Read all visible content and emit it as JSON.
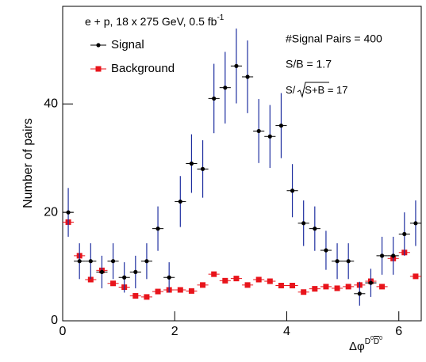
{
  "chart_data": {
    "type": "errorbar",
    "annotation_title": {
      "text": "e + p, 18 x 275 GeV, 0.5 fb",
      "sup": "-1"
    },
    "annotations": [
      "#Signal Pairs = 400",
      "S/B = 1.7"
    ],
    "ratio_annotation": {
      "prefix": "S/",
      "radicand": "S+B",
      "suffix": " = 17"
    },
    "ylabel": "Number of pairs",
    "xlabel": {
      "base": "Δφ",
      "sup1": "D",
      "sup1_exp": "0",
      "sup2": "D",
      "sup2_exp": "0"
    },
    "x": [
      0.1,
      0.3,
      0.5,
      0.7,
      0.9,
      1.1,
      1.3,
      1.5,
      1.7,
      1.9,
      2.1,
      2.3,
      2.5,
      2.7,
      2.9,
      3.1,
      3.3,
      3.5,
      3.7,
      3.9,
      4.1,
      4.3,
      4.5,
      4.7,
      4.9,
      5.1,
      5.3,
      5.5,
      5.7,
      5.9,
      6.1,
      6.3
    ],
    "xerr": 0.1,
    "series": [
      {
        "name": "Signal",
        "color": "#000000",
        "error_color": "#1f2f9f",
        "values": [
          20,
          11,
          11,
          9,
          11,
          8,
          9,
          11,
          17,
          8,
          22,
          29,
          28,
          41,
          43,
          47,
          45,
          35,
          34,
          36,
          24,
          18,
          17,
          13,
          11,
          11,
          5,
          7,
          12,
          12,
          16,
          18
        ],
        "errors": [
          4.5,
          3.3,
          3.3,
          3,
          3.3,
          2.8,
          3,
          3.3,
          4.1,
          2.8,
          4.7,
          5.4,
          5.3,
          6.4,
          6.6,
          6.9,
          6.7,
          5.9,
          5.8,
          6,
          4.9,
          4.2,
          4.1,
          3.6,
          3.3,
          3.3,
          2.2,
          2.6,
          3.5,
          3.5,
          4,
          4.2
        ]
      },
      {
        "name": "Background",
        "color": "#e8141b",
        "values": [
          18.2,
          12,
          7.6,
          9.3,
          6.9,
          6.2,
          4.6,
          4.4,
          5.4,
          5.7,
          5.7,
          5.5,
          6.6,
          8.6,
          7.4,
          7.8,
          6.6,
          7.6,
          7.3,
          6.5,
          6.5,
          5.3,
          5.9,
          6.3,
          6,
          6.3,
          6.6,
          7.3,
          6.3,
          11.5,
          12.6,
          8.2
        ]
      }
    ],
    "xlim": [
      0,
      6.4
    ],
    "xticks": [
      0,
      2,
      4,
      6
    ],
    "ylim": [
      0,
      58
    ],
    "yticks": [
      0,
      20,
      40
    ]
  }
}
